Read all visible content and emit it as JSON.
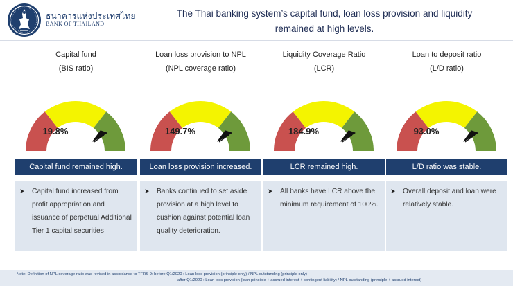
{
  "header": {
    "brand_thai": "ธนาคารแห่งประเทศไทย",
    "brand_english": "BANK OF THAILAND",
    "headline_line1": "The Thai banking system’s capital fund, loan loss provision and liquidity",
    "headline_line2": "remained at high levels."
  },
  "colors": {
    "gauge_red": "#c9514f",
    "gauge_yellow": "#f4f400",
    "gauge_green": "#6e9a3b",
    "banner_navy": "#1f3f6e",
    "panel_blue": "#dfe6ef"
  },
  "indicators": [
    {
      "title_line1": "Capital fund",
      "title_line2": "(BIS ratio)",
      "value": "19.8%",
      "banner": "Capital fund remained high.",
      "bullet_icon": "arrow-bullet-icon",
      "description": "Capital fund increased from profit appropriation and issuance of perpetual Additional Tier 1 capital securities"
    },
    {
      "title_line1": "Loan loss provision to NPL",
      "title_line2": "(NPL coverage ratio)",
      "value": "149.7%",
      "banner": "Loan loss provision increased.",
      "bullet_icon": "arrow-bullet-icon",
      "description": "Banks continued to set aside provision at a high level to cushion against potential loan quality deterioration."
    },
    {
      "title_line1": "Liquidity Coverage Ratio",
      "title_line2": "(LCR)",
      "value": "184.9%",
      "banner": "LCR remained high.",
      "bullet_icon": "arrow-bullet-icon",
      "description": "All banks have LCR above the minimum requirement of 100%."
    },
    {
      "title_line1": "Loan to deposit ratio",
      "title_line2": "(L/D ratio)",
      "value": "93.0%",
      "banner": "L/D ratio was stable.",
      "bullet_icon": "arrow-bullet-icon",
      "description": "Overall deposit and loan were relatively stable."
    }
  ],
  "footer": {
    "note_line1": "Note: Definition of NPL coverage ratio was revised in accordance to TFRS 9: before Q1/2020 : Loan loss provision (principle only) / NPL outstanding (principle only)",
    "note_line2": "after Q1/2020 : Loan loss provision (loan principle + accrued interest + contingent liability) / NPL outstanding (principle + accrued interest)"
  }
}
